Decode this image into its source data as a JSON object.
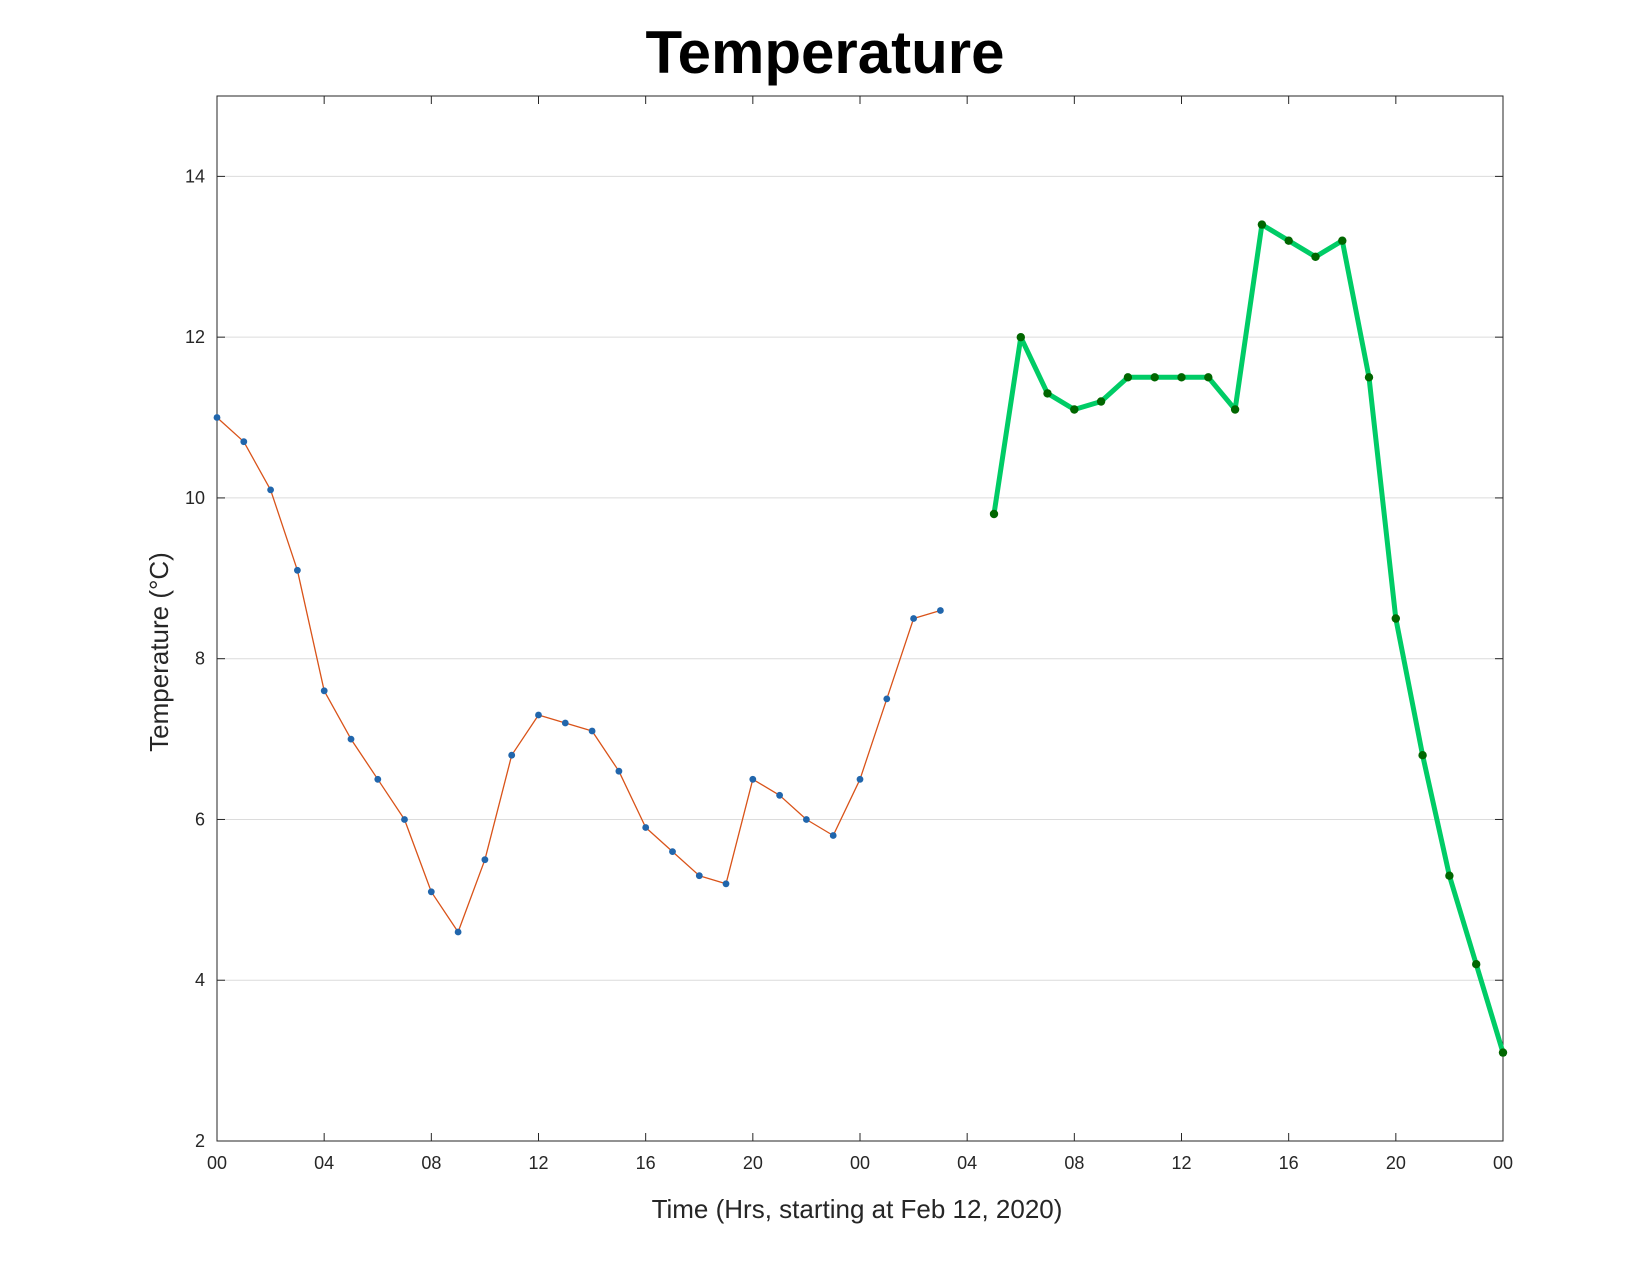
{
  "chart_data": {
    "type": "line",
    "title": "Temperature",
    "xlabel": "Time (Hrs, starting at Feb 12, 2020)",
    "ylabel": "Temperature (°C)",
    "xlim": [
      0,
      48
    ],
    "ylim": [
      2,
      15
    ],
    "x_ticks": [
      0,
      4,
      8,
      12,
      16,
      20,
      24,
      28,
      32,
      36,
      40,
      44,
      48
    ],
    "x_tick_labels": [
      "00",
      "04",
      "08",
      "12",
      "16",
      "20",
      "00",
      "04",
      "08",
      "12",
      "16",
      "20",
      "00"
    ],
    "y_ticks": [
      2,
      4,
      6,
      8,
      10,
      12,
      14
    ],
    "y_tick_labels": [
      "2",
      "4",
      "6",
      "8",
      "10",
      "12",
      "14"
    ],
    "grid": "horizontal",
    "series": [
      {
        "line_color": "#d95319",
        "marker_color": "#2166ac",
        "line_width": "thin",
        "x": [
          0,
          1,
          2,
          3,
          4,
          5,
          6,
          7,
          8,
          9,
          10,
          11,
          12,
          13,
          14,
          15,
          16,
          17,
          18,
          19,
          20,
          21,
          22,
          23,
          24,
          25,
          26,
          27
        ],
        "values": [
          11.0,
          10.7,
          10.1,
          9.1,
          7.6,
          7.0,
          6.5,
          6.0,
          5.1,
          4.6,
          5.5,
          6.8,
          7.3,
          7.2,
          7.1,
          6.6,
          5.9,
          5.6,
          5.3,
          5.2,
          6.5,
          6.3,
          6.0,
          5.8,
          6.5,
          7.5,
          8.5,
          8.6
        ]
      },
      {
        "line_color": "#00cc66",
        "marker_color": "#006600",
        "line_width": "thick",
        "x": [
          29,
          30,
          31,
          32,
          33,
          34,
          35,
          36,
          37,
          38,
          39,
          40,
          41,
          42,
          43,
          44,
          45,
          46,
          47,
          48
        ],
        "values": [
          9.8,
          12.0,
          11.3,
          11.1,
          11.2,
          11.5,
          11.5,
          11.5,
          11.5,
          11.1,
          13.4,
          13.2,
          13.0,
          13.2,
          11.5,
          8.5,
          6.8,
          5.3,
          4.2,
          3.1
        ]
      }
    ]
  }
}
